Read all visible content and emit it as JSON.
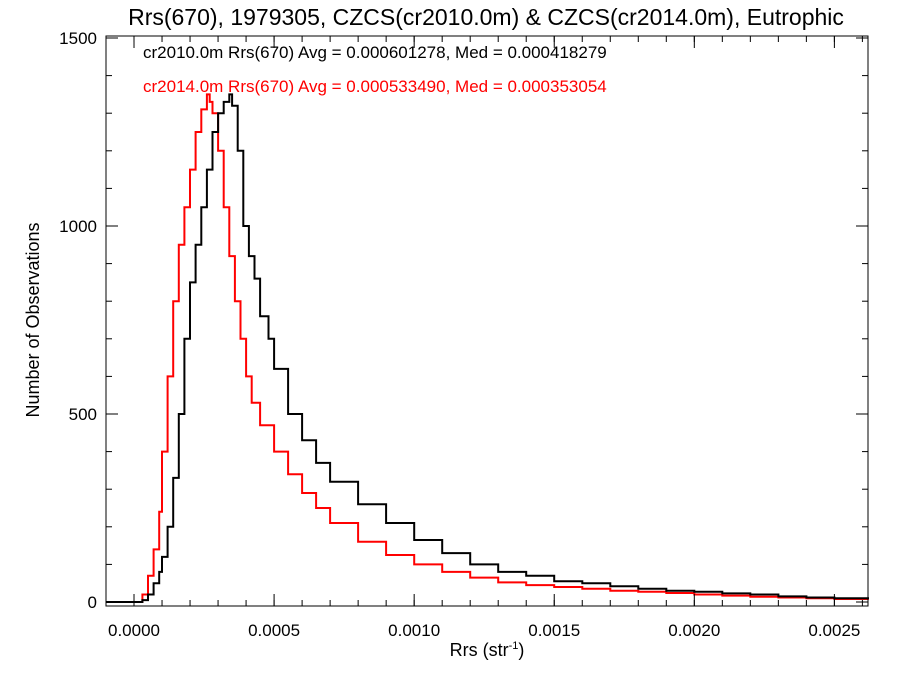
{
  "chart_data": {
    "type": "line",
    "title": "Rrs(670), 1979305, CZCS(cr2010.0m) & CZCS(cr2014.0m), Eutrophic",
    "xlabel_main": "Rrs (str",
    "xlabel_sup": "-1",
    "xlabel_close": ")",
    "ylabel": "Number of Observations",
    "xlim": [
      -0.0001,
      0.00262
    ],
    "ylim": [
      0,
      1500
    ],
    "x_ticks": [
      0.0,
      0.0005,
      0.001,
      0.0015,
      0.002,
      0.0025
    ],
    "x_tick_labels": [
      "0.0000",
      "0.0005",
      "0.0010",
      "0.0015",
      "0.0020",
      "0.0025"
    ],
    "y_ticks": [
      0,
      500,
      1000,
      1500
    ],
    "y_tick_labels": [
      "0",
      "500",
      "1000",
      "1500"
    ],
    "grid": false,
    "annotations": [
      {
        "text": "cr2010.0m Rrs(670) Avg = 0.000601278, Med = 0.000418279",
        "color": "#000000"
      },
      {
        "text": "cr2014.0m Rrs(670) Avg = 0.000533490, Med = 0.000353054",
        "color": "#ff0000"
      }
    ],
    "series": [
      {
        "color": "#000000",
        "x": [
          -0.0001,
          2e-05,
          3e-05,
          5e-05,
          7e-05,
          9e-05,
          0.0001,
          0.00012,
          0.00014,
          0.00016,
          0.00018,
          0.0002,
          0.00022,
          0.00024,
          0.00026,
          0.00028,
          0.0003,
          0.00032,
          0.00034,
          0.00035,
          0.00037,
          0.00039,
          0.00041,
          0.00043,
          0.00045,
          0.00048,
          0.0005,
          0.00055,
          0.0006,
          0.00065,
          0.0007,
          0.0008,
          0.0009,
          0.001,
          0.0011,
          0.0012,
          0.0013,
          0.0014,
          0.0015,
          0.0016,
          0.0017,
          0.0018,
          0.0019,
          0.002,
          0.0021,
          0.0022,
          0.0023,
          0.0024,
          0.0025,
          0.00262
        ],
        "y": [
          0,
          0,
          5,
          20,
          50,
          80,
          120,
          200,
          330,
          500,
          700,
          850,
          950,
          1050,
          1150,
          1250,
          1300,
          1330,
          1350,
          1320,
          1200,
          1000,
          920,
          860,
          760,
          700,
          620,
          500,
          430,
          370,
          320,
          260,
          210,
          165,
          130,
          100,
          80,
          70,
          55,
          50,
          42,
          35,
          30,
          27,
          23,
          20,
          15,
          12,
          10,
          8
        ]
      },
      {
        "color": "#ff0000",
        "x": [
          -0.0001,
          1e-05,
          3e-05,
          5e-05,
          7e-05,
          9e-05,
          0.0001,
          0.00012,
          0.00014,
          0.00016,
          0.00018,
          0.0002,
          0.00022,
          0.00024,
          0.00026,
          0.00027,
          0.00028,
          0.0003,
          0.00032,
          0.00034,
          0.00036,
          0.00038,
          0.0004,
          0.00042,
          0.00045,
          0.0005,
          0.00055,
          0.0006,
          0.00065,
          0.0007,
          0.0008,
          0.0009,
          0.001,
          0.0011,
          0.0012,
          0.0013,
          0.0014,
          0.0015,
          0.0016,
          0.0017,
          0.0018,
          0.0019,
          0.002,
          0.0021,
          0.0022,
          0.0023,
          0.0024,
          0.0025,
          0.00262
        ],
        "y": [
          0,
          0,
          20,
          70,
          140,
          240,
          400,
          600,
          800,
          950,
          1050,
          1150,
          1250,
          1310,
          1350,
          1330,
          1300,
          1200,
          1050,
          920,
          800,
          700,
          600,
          530,
          470,
          400,
          340,
          290,
          250,
          210,
          160,
          125,
          100,
          80,
          65,
          52,
          45,
          40,
          35,
          30,
          27,
          24,
          20,
          17,
          14,
          12,
          10,
          8,
          6
        ]
      }
    ]
  }
}
